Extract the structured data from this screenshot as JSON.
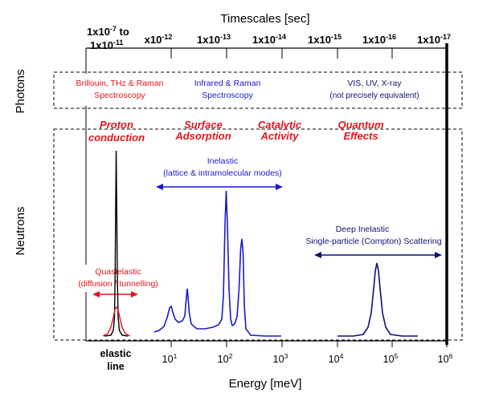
{
  "top_axis": {
    "title": "Timescales [sec]",
    "first_line1": "1x10",
    "first_exp1": "-7",
    "first_mid": " to",
    "first_line2": "1x10",
    "first_exp2": "-11",
    "ticks": [
      {
        "base": "x10",
        "exp": "-12"
      },
      {
        "base": "1x10",
        "exp": "-13"
      },
      {
        "base": "1x10",
        "exp": "-14"
      },
      {
        "base": "1x10",
        "exp": "-15"
      },
      {
        "base": "1x10",
        "exp": "-16"
      },
      {
        "base": "1x10",
        "exp": "-17"
      }
    ]
  },
  "bottom_axis": {
    "title": "Energy [meV]",
    "elastic_line1": "elastic",
    "elastic_line2": "line",
    "ticks": [
      {
        "base": "10",
        "exp": "1"
      },
      {
        "base": "10",
        "exp": "2"
      },
      {
        "base": "10",
        "exp": "3"
      },
      {
        "base": "10",
        "exp": "4"
      },
      {
        "base": "10",
        "exp": "5"
      },
      {
        "base": "10",
        "exp": "6"
      }
    ]
  },
  "side_labels": {
    "photons": "Photons",
    "neutrons": "Neutrons"
  },
  "photons": {
    "brillouin_1": "Brillouin, THz & Raman",
    "brillouin_2": "Spectroscopy",
    "infrared_1": "Infrared & Raman",
    "infrared_2": "Spectroscopy",
    "vis_1": "VIS, UV, X-ray",
    "vis_2": "(not precisely equivalent)"
  },
  "phenomena": {
    "proton_1": "Proton",
    "proton_2": "conduction",
    "surface_1": "Surface",
    "surface_2": "Adsorption",
    "catalytic_1": "Catalytic",
    "catalytic_2": "Activity",
    "quantum_1": "Quantum",
    "quantum_2": "Effects"
  },
  "neutrons": {
    "inelastic_1": "Inelastic",
    "inelastic_2": "(lattice & intramolecular modes)",
    "deep_1": "Deep Inelastic",
    "deep_2": "Single-particle (Compton) Scattering",
    "quasi_1": "Quasielastic",
    "quasi_2": "(diffusion / tunnelling)"
  },
  "colors": {
    "red": "#e8141c",
    "blue": "#1a1acc",
    "navy": "#101070",
    "black": "#000000"
  }
}
